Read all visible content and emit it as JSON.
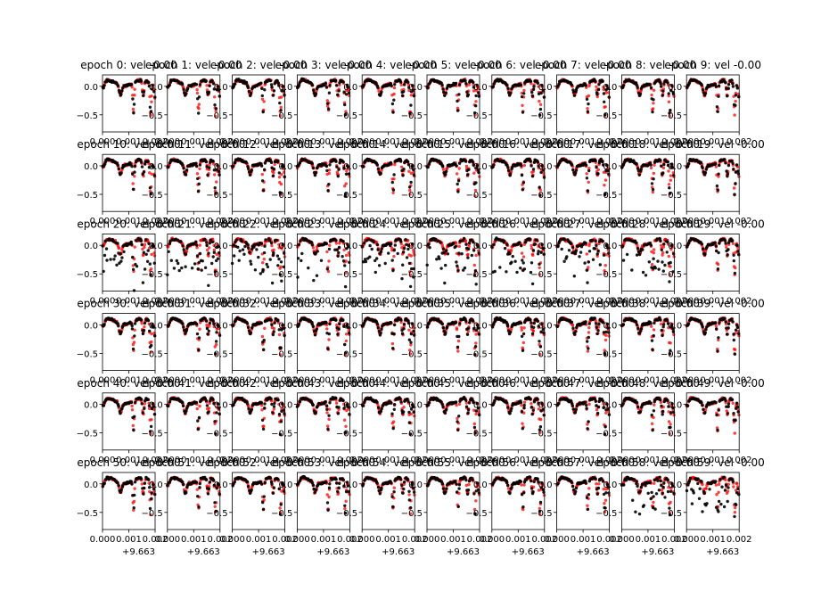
{
  "figure": {
    "background": "#ffffff",
    "series_colors": {
      "observed": "#000000",
      "model": "#ff0000"
    },
    "grid": {
      "rows": 6,
      "cols": 10
    },
    "axis_offset_text": "+9.663"
  },
  "chart_data": {
    "type": "scatter",
    "panel_count": 60,
    "panel_title_prefix": "epoch ",
    "panel_title_suffix": ": vel -0.00",
    "xlim": [
      0.0,
      0.002
    ],
    "ylim": [
      -0.8,
      0.2
    ],
    "x_ticks": [
      0.0,
      0.001,
      0.002
    ],
    "x_tick_labels": [
      "0.000",
      "0.001",
      "0.002"
    ],
    "y_ticks": [
      0.0,
      -0.5
    ],
    "y_tick_labels": [
      "0.0",
      "−0.5"
    ],
    "x_offset": "+9.663",
    "profile": {
      "baseline": 0.06,
      "wave_amplitude": 0.05,
      "lines": [
        {
          "center": 2e-05,
          "depth": 0.12,
          "width": 6e-05
        },
        {
          "center": 0.00068,
          "depth": 0.18,
          "width": 5e-05
        },
        {
          "center": 0.00118,
          "depth": 0.52,
          "width": 2.8e-05
        },
        {
          "center": 0.00155,
          "depth": 0.28,
          "width": 3.5e-05
        },
        {
          "center": 0.00183,
          "depth": 0.58,
          "width": 2.8e-05
        },
        {
          "center": 0.002,
          "depth": 0.22,
          "width": 4e-05
        }
      ]
    },
    "noisy_epochs": [
      20,
      21,
      22,
      23,
      24,
      25,
      26,
      27,
      28,
      58,
      59
    ],
    "series": [
      {
        "color": "#ff0000",
        "points_per_panel": 90
      },
      {
        "color": "#000000",
        "points_per_panel": 60
      }
    ]
  }
}
